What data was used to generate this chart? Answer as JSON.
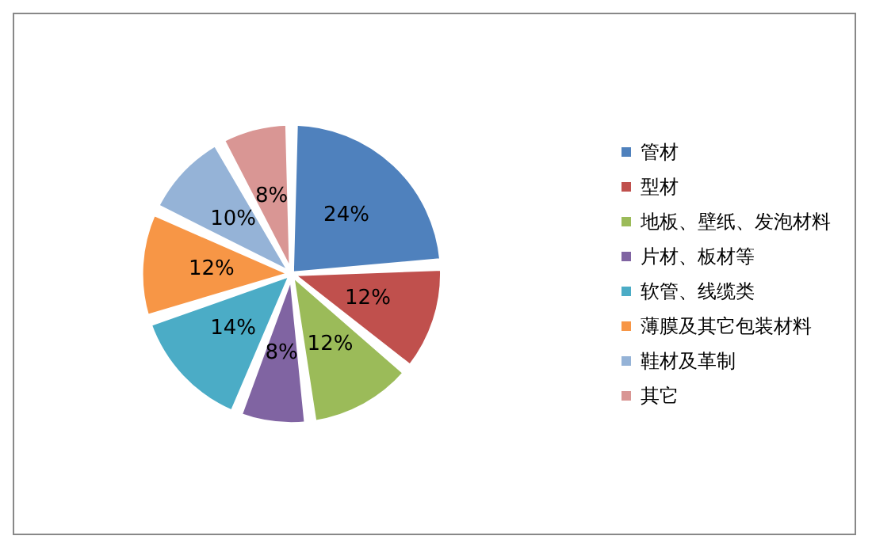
{
  "chart_data": {
    "type": "pie",
    "categories": [
      "管材",
      "型材",
      "地板、壁纸、发泡材料",
      "片材、板材等",
      "软管、线缆类",
      "薄膜及其它包装材料",
      "鞋材及革制",
      "其它"
    ],
    "values": [
      24,
      12,
      12,
      8,
      14,
      12,
      10,
      8
    ],
    "colors": [
      "#4f81bd",
      "#c0504d",
      "#9bbb59",
      "#8064a2",
      "#4bacc6",
      "#f79646",
      "#95b3d7",
      "#d99694"
    ],
    "value_labels": [
      "24%",
      "12%",
      "12%",
      "8%",
      "14%",
      "12%",
      "10%",
      "8%"
    ],
    "legend": "right"
  }
}
